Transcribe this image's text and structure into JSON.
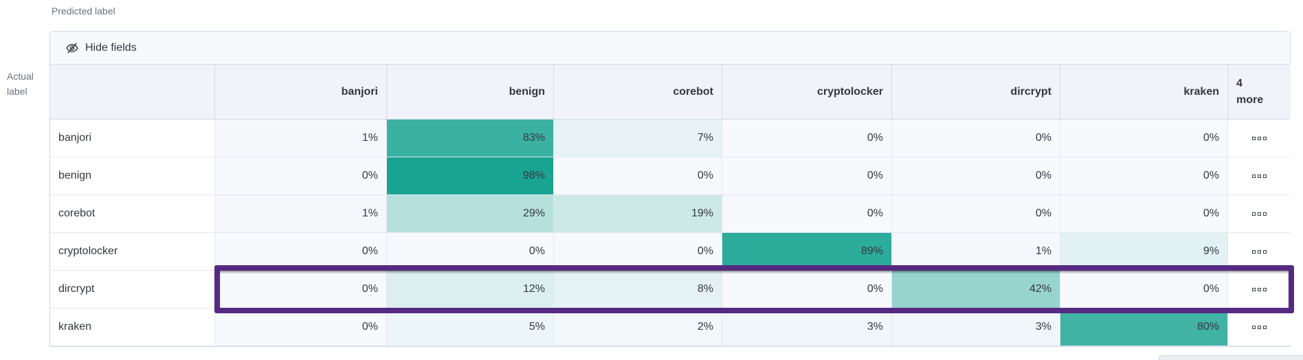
{
  "axis": {
    "predicted": "Predicted label",
    "actual": "Actual label"
  },
  "toolbar": {
    "hide_fields_label": "Hide fields"
  },
  "matrix": {
    "columns": [
      "banjori",
      "benign",
      "corebot",
      "cryptolocker",
      "dircrypt",
      "kraken"
    ],
    "more_column_label": "4\nmore",
    "value_suffix": "%",
    "rows": [
      {
        "label": "banjori",
        "values": [
          1,
          83,
          7,
          0,
          0,
          0
        ],
        "highlighted": false
      },
      {
        "label": "benign",
        "values": [
          0,
          98,
          0,
          0,
          0,
          0
        ],
        "highlighted": false
      },
      {
        "label": "corebot",
        "values": [
          1,
          29,
          19,
          0,
          0,
          0
        ],
        "highlighted": false
      },
      {
        "label": "cryptolocker",
        "values": [
          0,
          0,
          0,
          89,
          1,
          9
        ],
        "highlighted": false
      },
      {
        "label": "dircrypt",
        "values": [
          0,
          12,
          8,
          0,
          42,
          0
        ],
        "highlighted": true
      },
      {
        "label": "kraken",
        "values": [
          0,
          5,
          2,
          3,
          3,
          80
        ],
        "highlighted": false
      }
    ]
  },
  "chart_data": {
    "type": "heatmap",
    "title": "",
    "xlabel": "Predicted label",
    "ylabel": "Actual label",
    "x_categories": [
      "banjori",
      "benign",
      "corebot",
      "cryptolocker",
      "dircrypt",
      "kraken"
    ],
    "y_categories": [
      "banjori",
      "benign",
      "corebot",
      "cryptolocker",
      "dircrypt",
      "kraken"
    ],
    "values_percent": [
      [
        1,
        83,
        7,
        0,
        0,
        0
      ],
      [
        0,
        98,
        0,
        0,
        0,
        0
      ],
      [
        1,
        29,
        19,
        0,
        0,
        0
      ],
      [
        0,
        0,
        0,
        89,
        1,
        9
      ],
      [
        0,
        12,
        8,
        0,
        42,
        0
      ],
      [
        0,
        5,
        2,
        3,
        3,
        80
      ]
    ],
    "hidden_columns_note": "4 more",
    "highlighted_row": "dircrypt",
    "color_range": [
      0,
      100
    ]
  },
  "icons": {
    "hide_fields": "eye-closed-icon",
    "more_actions": "boxes-horizontal-icon"
  },
  "colors": {
    "heat_min": "#f7f9fc",
    "heat_max": "#13a28f",
    "highlight_border": "#562a83",
    "header_bg": "#f1f3f9",
    "toolbar_bg": "#f8f9fd",
    "border": "#d3dae6",
    "text": "#343741",
    "axis_text": "#69707d"
  }
}
